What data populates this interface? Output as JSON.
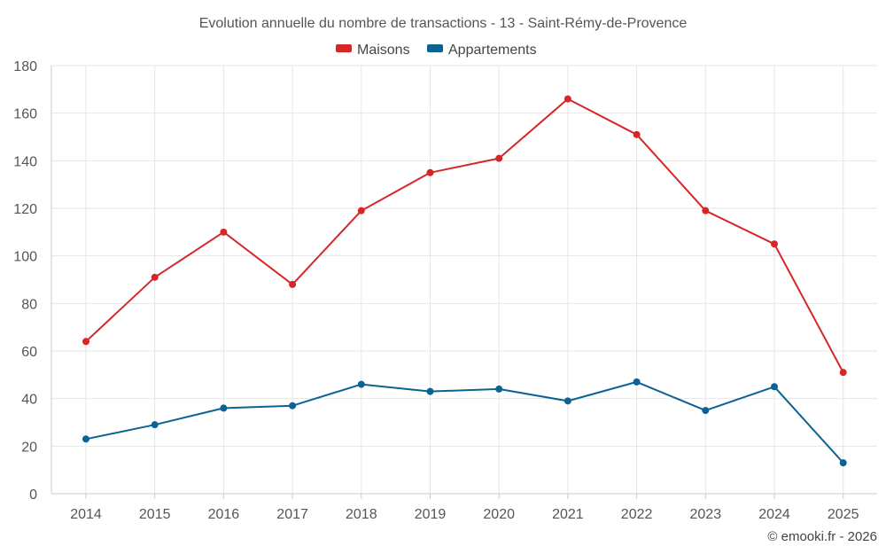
{
  "chart_data": {
    "type": "line",
    "title": "Evolution annuelle du nombre de transactions - 13 - Saint-Rémy-de-Provence",
    "categories": [
      "2014",
      "2015",
      "2016",
      "2017",
      "2018",
      "2019",
      "2020",
      "2021",
      "2022",
      "2023",
      "2024",
      "2025"
    ],
    "series": [
      {
        "name": "Maisons",
        "color": "#d62728",
        "values": [
          64,
          91,
          110,
          88,
          119,
          135,
          141,
          166,
          151,
          119,
          105,
          51
        ]
      },
      {
        "name": "Appartements",
        "color": "#0b6394",
        "values": [
          23,
          29,
          36,
          37,
          46,
          43,
          44,
          39,
          47,
          35,
          45,
          13
        ]
      }
    ],
    "xlabel": "",
    "ylabel": "",
    "ylim": [
      0,
      180
    ],
    "yticks": [
      "0",
      "20",
      "40",
      "60",
      "80",
      "100",
      "120",
      "140",
      "160",
      "180"
    ],
    "grid": true,
    "legend_position": "top-center"
  },
  "credit": "© emooki.fr - 2026"
}
